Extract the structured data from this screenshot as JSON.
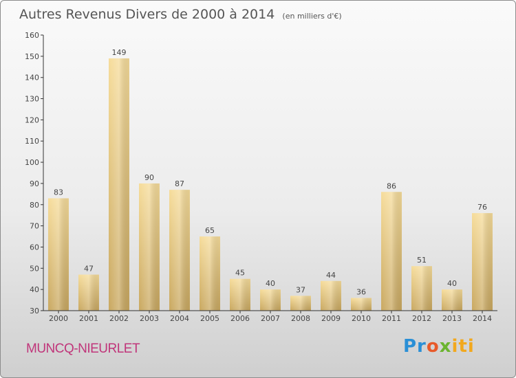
{
  "title": "Autres Revenus Divers de 2000 à 2014",
  "unit": "(en milliers d'€)",
  "location": "MUNCQ-NIEURLET",
  "brand": {
    "logo": "Proxiti"
  },
  "colors": {
    "bar": "#e6c98a",
    "axis": "#333333",
    "location": "#c0357a"
  },
  "chart_data": {
    "type": "bar",
    "title": "Autres Revenus Divers de 2000 à 2014",
    "subtitle": "(en milliers d'€)",
    "categories": [
      "2000",
      "2001",
      "2002",
      "2003",
      "2004",
      "2005",
      "2006",
      "2007",
      "2008",
      "2009",
      "2010",
      "2011",
      "2012",
      "2013",
      "2014"
    ],
    "values": [
      83,
      47,
      149,
      90,
      87,
      65,
      45,
      40,
      37,
      44,
      36,
      86,
      51,
      40,
      76
    ],
    "ylim": [
      30,
      160
    ],
    "yticks": [
      30,
      40,
      50,
      60,
      70,
      80,
      90,
      100,
      110,
      120,
      130,
      140,
      150,
      160
    ],
    "grid": false,
    "data_labels": true
  }
}
